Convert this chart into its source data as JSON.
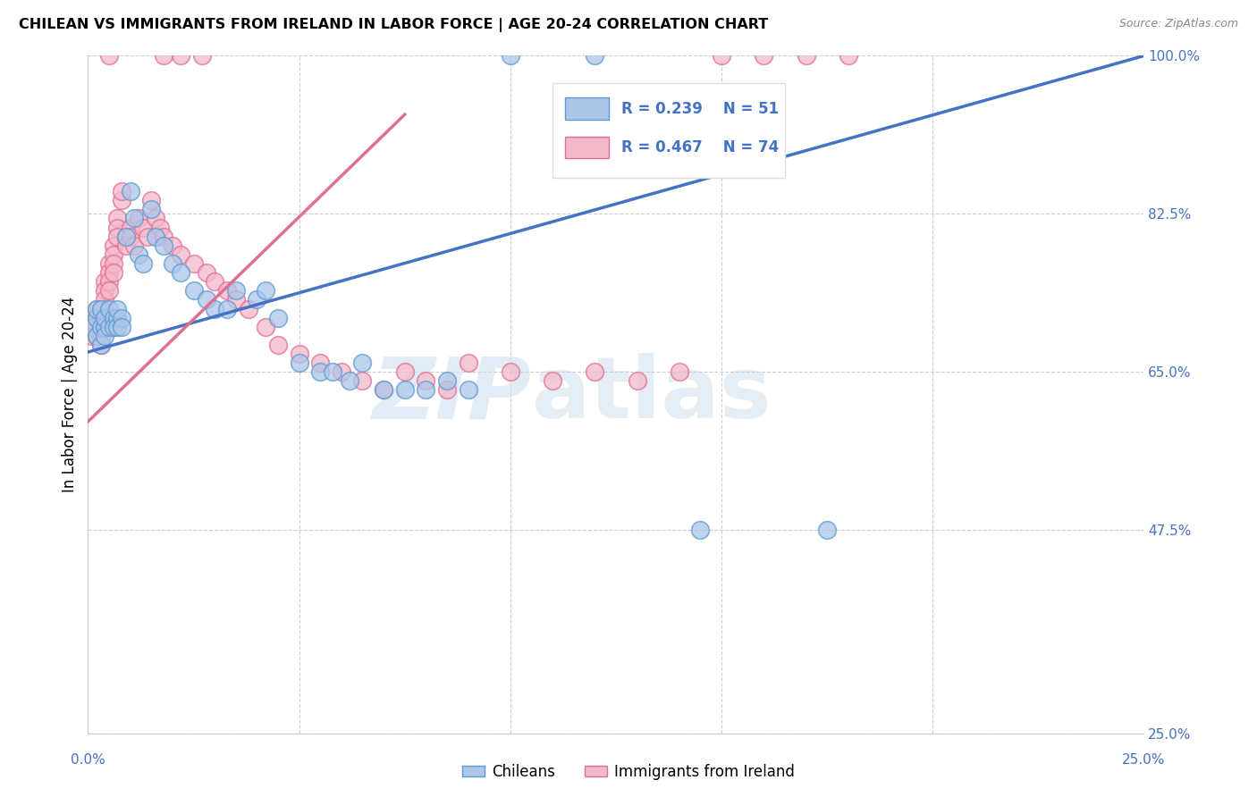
{
  "title": "CHILEAN VS IMMIGRANTS FROM IRELAND IN LABOR FORCE | AGE 20-24 CORRELATION CHART",
  "source": "Source: ZipAtlas.com",
  "ylabel": "In Labor Force | Age 20-24",
  "xlim": [
    0.0,
    0.25
  ],
  "ylim": [
    0.25,
    1.0
  ],
  "yticks": [
    0.25,
    0.475,
    0.65,
    0.825,
    1.0
  ],
  "yticklabels": [
    "25.0%",
    "47.5%",
    "65.0%",
    "82.5%",
    "100.0%"
  ],
  "xtick_positions": [
    0.0,
    0.05,
    0.1,
    0.15,
    0.2,
    0.25
  ],
  "xticklabels": [
    "0.0%",
    "",
    "",
    "",
    "",
    "25.0%"
  ],
  "blue_fill": "#adc6e8",
  "blue_edge": "#5b9bd5",
  "pink_fill": "#f4b8cb",
  "pink_edge": "#e07090",
  "blue_line": "#4472c4",
  "pink_line": "#e07090",
  "R_blue": 0.239,
  "N_blue": 51,
  "R_pink": 0.467,
  "N_pink": 74,
  "legend_blue": "Chileans",
  "legend_pink": "Immigrants from Ireland",
  "watermark_zip": "ZIP",
  "watermark_atlas": "atlas",
  "blue_line_x0": 0.0,
  "blue_line_y0": 0.672,
  "blue_line_x1": 0.25,
  "blue_line_y1": 1.0,
  "pink_line_x0": 0.0,
  "pink_line_y0": 0.595,
  "pink_line_x1": 0.075,
  "pink_line_y1": 0.935,
  "blue_x": [
    0.001,
    0.002,
    0.002,
    0.002,
    0.003,
    0.003,
    0.003,
    0.004,
    0.004,
    0.004,
    0.005,
    0.005,
    0.006,
    0.006,
    0.007,
    0.007,
    0.007,
    0.008,
    0.008,
    0.009,
    0.01,
    0.011,
    0.012,
    0.013,
    0.015,
    0.016,
    0.018,
    0.02,
    0.022,
    0.025,
    0.028,
    0.03,
    0.033,
    0.035,
    0.04,
    0.042,
    0.045,
    0.05,
    0.055,
    0.058,
    0.062,
    0.065,
    0.07,
    0.075,
    0.08,
    0.085,
    0.09,
    0.1,
    0.12,
    0.145,
    0.175
  ],
  "blue_y": [
    0.7,
    0.71,
    0.69,
    0.72,
    0.68,
    0.72,
    0.7,
    0.7,
    0.69,
    0.71,
    0.72,
    0.7,
    0.71,
    0.7,
    0.71,
    0.72,
    0.7,
    0.71,
    0.7,
    0.8,
    0.85,
    0.82,
    0.78,
    0.77,
    0.83,
    0.8,
    0.79,
    0.77,
    0.76,
    0.74,
    0.73,
    0.72,
    0.72,
    0.74,
    0.73,
    0.74,
    0.71,
    0.66,
    0.65,
    0.65,
    0.64,
    0.66,
    0.63,
    0.63,
    0.63,
    0.64,
    0.63,
    1.0,
    1.0,
    0.475,
    0.475
  ],
  "pink_x": [
    0.001,
    0.001,
    0.001,
    0.002,
    0.002,
    0.002,
    0.002,
    0.003,
    0.003,
    0.003,
    0.003,
    0.003,
    0.003,
    0.004,
    0.004,
    0.004,
    0.004,
    0.005,
    0.005,
    0.005,
    0.005,
    0.006,
    0.006,
    0.006,
    0.006,
    0.007,
    0.007,
    0.007,
    0.008,
    0.008,
    0.009,
    0.009,
    0.01,
    0.01,
    0.011,
    0.012,
    0.013,
    0.014,
    0.015,
    0.016,
    0.017,
    0.018,
    0.02,
    0.022,
    0.025,
    0.028,
    0.03,
    0.033,
    0.035,
    0.038,
    0.042,
    0.045,
    0.05,
    0.055,
    0.06,
    0.065,
    0.07,
    0.075,
    0.08,
    0.085,
    0.09,
    0.1,
    0.11,
    0.12,
    0.13,
    0.14,
    0.15,
    0.16,
    0.17,
    0.18,
    0.022,
    0.027,
    0.005,
    0.018
  ],
  "pink_y": [
    0.7,
    0.71,
    0.69,
    0.72,
    0.71,
    0.7,
    0.69,
    0.72,
    0.7,
    0.71,
    0.69,
    0.68,
    0.7,
    0.75,
    0.74,
    0.73,
    0.72,
    0.77,
    0.76,
    0.75,
    0.74,
    0.79,
    0.78,
    0.77,
    0.76,
    0.82,
    0.81,
    0.8,
    0.84,
    0.85,
    0.8,
    0.79,
    0.81,
    0.8,
    0.79,
    0.82,
    0.81,
    0.8,
    0.84,
    0.82,
    0.81,
    0.8,
    0.79,
    0.78,
    0.77,
    0.76,
    0.75,
    0.74,
    0.73,
    0.72,
    0.7,
    0.68,
    0.67,
    0.66,
    0.65,
    0.64,
    0.63,
    0.65,
    0.64,
    0.63,
    0.66,
    0.65,
    0.64,
    0.65,
    0.64,
    0.65,
    1.0,
    1.0,
    1.0,
    1.0,
    1.0,
    1.0,
    1.0,
    1.0
  ]
}
